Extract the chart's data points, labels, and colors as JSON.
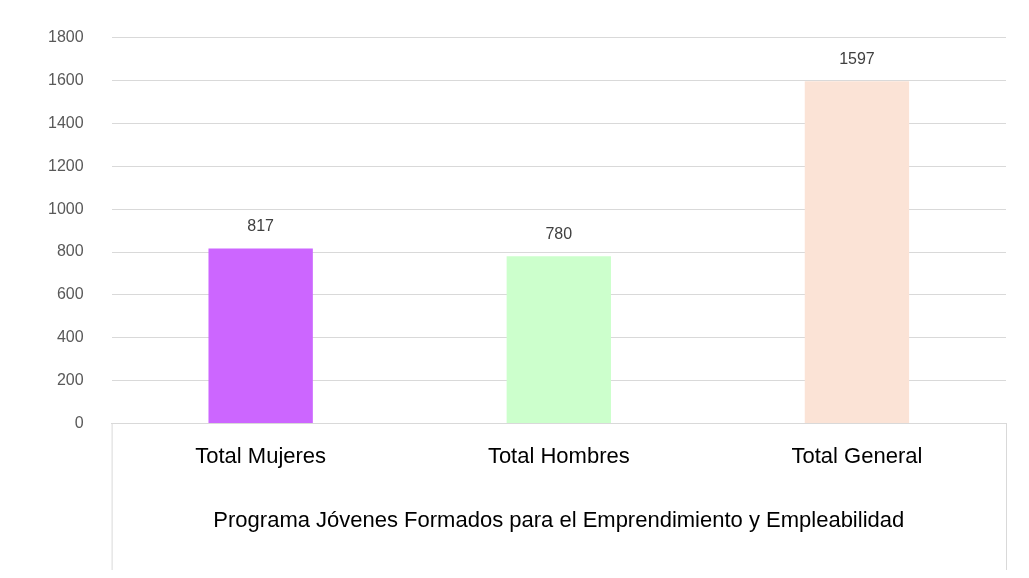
{
  "chart_data": {
    "type": "bar",
    "xlabel": "Programa Jóvenes Formados para el Emprendimiento y Empleabilidad",
    "categories": [
      "Total Mujeres",
      "Total Hombres",
      "Total General"
    ],
    "values": [
      817,
      780,
      1597
    ],
    "colors": [
      "#cc66ff",
      "#ccffcc",
      "#fbe3d6"
    ],
    "ylim": [
      0,
      1800
    ],
    "yticks": [
      0,
      200,
      400,
      600,
      800,
      1000,
      1200,
      1400,
      1600,
      1800
    ],
    "grid": "y",
    "data_labels": true
  }
}
